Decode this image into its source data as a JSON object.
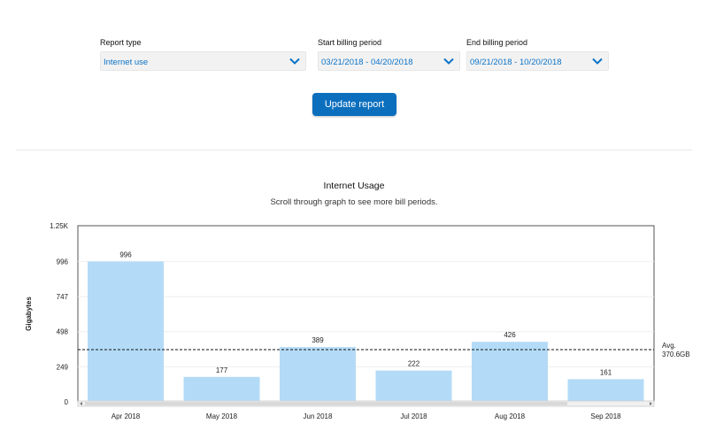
{
  "filters": {
    "report_type": {
      "label": "Report type",
      "value": "Internet use"
    },
    "start_period": {
      "label": "Start billing period",
      "value": "03/21/2018 - 04/20/2018"
    },
    "end_period": {
      "label": "End billing period",
      "value": "09/21/2018 - 10/20/2018"
    }
  },
  "update_button": {
    "label": "Update report"
  },
  "colors": {
    "bar": "#b3dbf7",
    "accent": "#0b6fbe",
    "link": "#0b73c7"
  },
  "chart_data": {
    "type": "bar",
    "title": "Internet Usage",
    "subtitle": "Scroll through graph to see more bill periods.",
    "ylabel": "Gigabytes",
    "xlabel": "",
    "categories": [
      "Apr 2018",
      "May 2018",
      "Jun 2018",
      "Jul 2018",
      "Aug 2018",
      "Sep 2018"
    ],
    "values": [
      996,
      177,
      389,
      222,
      426,
      161
    ],
    "ylim": [
      0,
      1250
    ],
    "yticks": [
      0,
      249,
      498,
      747,
      996,
      1250
    ],
    "ytick_labels": [
      "0",
      "249",
      "498",
      "747",
      "996",
      "1.25K"
    ],
    "average": {
      "value": 370.6,
      "label_line1": "Avg.",
      "label_line2": "370.6GB"
    },
    "grid": true
  }
}
